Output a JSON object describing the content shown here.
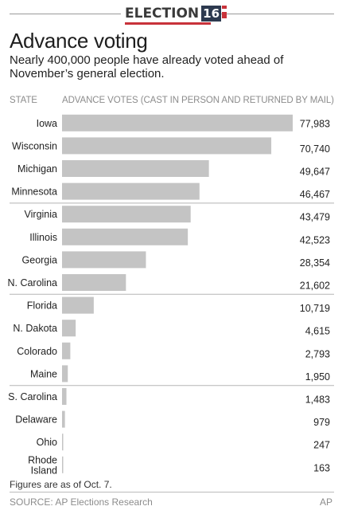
{
  "header": {
    "logo_word": "ELECTION",
    "logo_number": "16"
  },
  "title": "Advance voting",
  "subtitle": "Nearly 400,000 people have already voted ahead of November’s general election.",
  "column_headers": {
    "state": "STATE",
    "votes": "ADVANCE VOTES (CAST IN PERSON AND RETURNED BY MAIL)"
  },
  "footnote": "Figures are as of Oct. 7.",
  "source": "SOURCE: AP Elections Research",
  "credit": "AP",
  "colors": {
    "bar": "#c4c4c4",
    "divider": "#b5b5b5",
    "logo_red": "#c8323a",
    "logo_navy": "#2d3a4f"
  },
  "chart_data": {
    "type": "bar",
    "orientation": "horizontal",
    "categories": [
      "Iowa",
      "Wisconsin",
      "Michigan",
      "Minnesota",
      "Virginia",
      "Illinois",
      "Georgia",
      "N. Carolina",
      "Florida",
      "N. Dakota",
      "Colorado",
      "Maine",
      "S. Carolina",
      "Delaware",
      "Ohio",
      "Rhode Island"
    ],
    "category_lines": [
      [
        "Iowa"
      ],
      [
        "Wisconsin"
      ],
      [
        "Michigan"
      ],
      [
        "Minnesota"
      ],
      [
        "Virginia"
      ],
      [
        "Illinois"
      ],
      [
        "Georgia"
      ],
      [
        "N. Carolina"
      ],
      [
        "Florida"
      ],
      [
        "N. Dakota"
      ],
      [
        "Colorado"
      ],
      [
        "Maine"
      ],
      [
        "S. Carolina"
      ],
      [
        "Delaware"
      ],
      [
        "Ohio"
      ],
      [
        "Rhode",
        "Island"
      ]
    ],
    "values": [
      77983,
      70740,
      49647,
      46467,
      43479,
      42523,
      28354,
      21602,
      10719,
      4615,
      2793,
      1950,
      1483,
      979,
      247,
      163
    ],
    "value_labels": [
      "77,983",
      "70,740",
      "49,647",
      "46,467",
      "43,479",
      "42,523",
      "28,354",
      "21,602",
      "10,719",
      "4,615",
      "2,793",
      "1,950",
      "1,483",
      "979",
      "247",
      "163"
    ],
    "group_size": 4,
    "xlim": [
      0,
      77983
    ],
    "grid": false,
    "legend": "none"
  }
}
